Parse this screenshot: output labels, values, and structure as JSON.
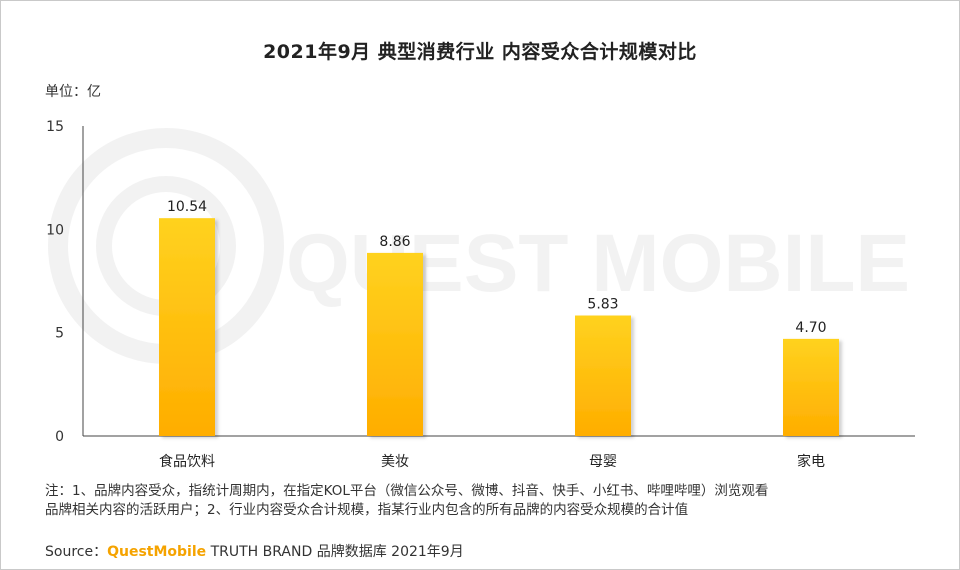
{
  "title": "2021年9月 典型消费行业 内容受众合计规模对比",
  "unit_label": "单位：亿",
  "watermark": "QUEST MOBILE",
  "note_line1": "注：1、品牌内容受众，指统计周期内，在指定KOL平台（微信公众号、微博、抖音、快手、小红书、哔哩哔哩）浏览观看",
  "note_line2": "品牌相关内容的活跃用户；2、行业内容受众合计规模，指某行业内包含的所有品牌的内容受众规模的合计值",
  "source_prefix": "Source：",
  "source_brand": "QuestMobile",
  "source_rest": " TRUTH BRAND 品牌数据库 2021年9月",
  "colors": {
    "bar_top": "#ffd21f",
    "bar_bottom": "#ffad00",
    "brand": "#f5a300"
  },
  "chart_data": {
    "type": "bar",
    "categories": [
      "食品饮料",
      "美妆",
      "母婴",
      "家电"
    ],
    "values": [
      10.54,
      8.86,
      5.83,
      4.7
    ],
    "value_labels": [
      "10.54",
      "8.86",
      "5.83",
      "4.70"
    ],
    "yticks": [
      "0",
      "5",
      "10",
      "15"
    ],
    "ylim": [
      0,
      15
    ],
    "grid": false,
    "legend": "none"
  }
}
